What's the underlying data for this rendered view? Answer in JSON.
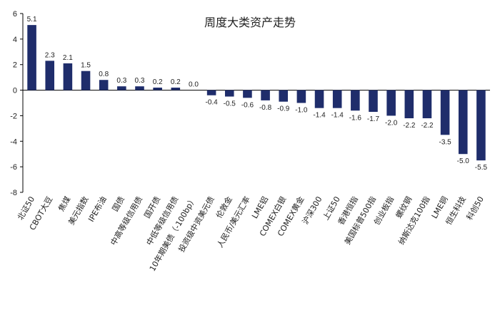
{
  "chart_data": {
    "type": "bar",
    "title": "周度大类资产走势",
    "xlabel": "",
    "ylabel": "",
    "ylim": [
      -8,
      6
    ],
    "yticks": [
      6,
      4,
      2,
      0,
      -2,
      -4,
      -6,
      -8
    ],
    "grid": false,
    "bar_color": "#1f2d6b",
    "categories": [
      "北证50",
      "CBOT大豆",
      "焦煤",
      "美元指数",
      "IPE布油",
      "国债",
      "中高等级信用债",
      "国开债",
      "中低等级信用债",
      "10年期美债（-100bp）",
      "投资级中资美元债",
      "伦敦金",
      "人民币/美元汇率",
      "LME铝",
      "COMEX白银",
      "COMEX黄金",
      "沪深300",
      "上证50",
      "香港恒指",
      "美国标普500指",
      "创业板指",
      "螺纹钢",
      "纳斯达克100指",
      "LME铜",
      "恒生科技",
      "科创50"
    ],
    "values": [
      5.1,
      2.3,
      2.1,
      1.5,
      0.8,
      0.3,
      0.3,
      0.2,
      0.2,
      0.0,
      -0.4,
      -0.5,
      -0.6,
      -0.8,
      -0.9,
      -1.0,
      -1.4,
      -1.4,
      -1.6,
      -1.7,
      -2.0,
      -2.2,
      -2.2,
      -3.5,
      -5.0,
      -5.5
    ],
    "value_labels": [
      "5.1",
      "2.3",
      "2.1",
      "1.5",
      "0.8",
      "0.3",
      "0.3",
      "0.2",
      "0.2",
      "0.0",
      "-0.4",
      "-0.5",
      "-0.6",
      "-0.8",
      "-0.9",
      "-1.0",
      "-1.4",
      "-1.4",
      "-1.6",
      "-1.7",
      "-2.0",
      "-2.2",
      "-2.2",
      "-3.5",
      "-5.0",
      "-5.5"
    ]
  }
}
